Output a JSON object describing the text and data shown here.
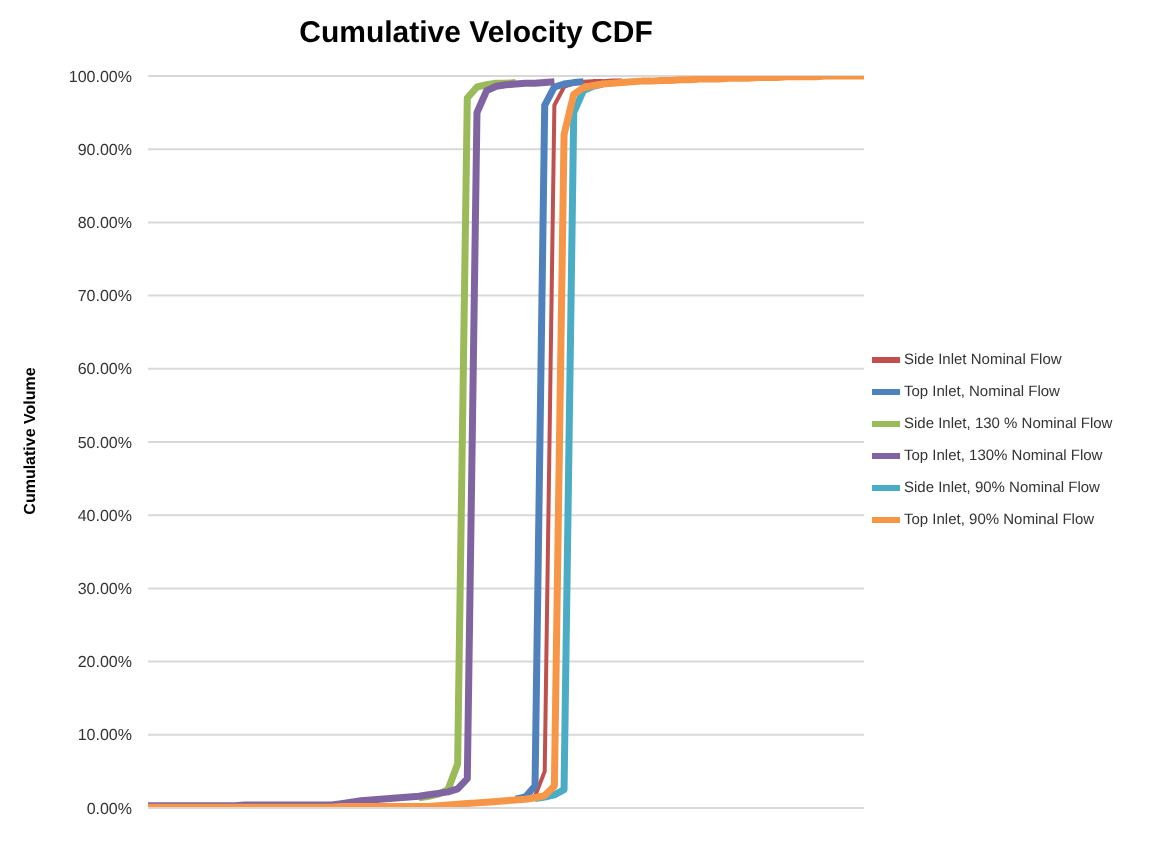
{
  "chart_data": {
    "type": "line",
    "title": "Cumulative Velocity CDF",
    "ylabel": "Cumulative Volume",
    "categories": [
      null,
      null,
      null,
      null,
      null,
      null,
      null,
      null,
      null,
      null,
      null,
      null,
      null,
      null,
      null,
      null,
      null,
      null,
      null,
      null,
      null,
      null,
      null,
      null,
      null,
      null,
      null,
      null,
      null,
      null,
      null,
      null,
      null,
      null,
      null,
      null,
      null,
      null,
      null,
      null,
      null,
      null,
      null,
      null,
      null,
      null,
      null,
      null,
      null,
      null,
      null,
      null,
      null,
      null,
      null,
      null,
      null,
      null,
      null,
      null,
      null,
      null,
      null,
      null,
      null,
      null,
      null,
      null,
      null,
      null,
      null,
      null,
      null,
      null,
      null
    ],
    "ylim": [
      0,
      100
    ],
    "yticks": [
      {
        "value": 0,
        "label": "0.00%"
      },
      {
        "value": 10,
        "label": "10.00%"
      },
      {
        "value": 20,
        "label": "20.00%"
      },
      {
        "value": 30,
        "label": "30.00%"
      },
      {
        "value": 40,
        "label": "40.00%"
      },
      {
        "value": 50,
        "label": "50.00%"
      },
      {
        "value": 60,
        "label": "60.00%"
      },
      {
        "value": 70,
        "label": "70.00%"
      },
      {
        "value": 80,
        "label": "80.00%"
      },
      {
        "value": 90,
        "label": "90.00%"
      },
      {
        "value": 100,
        "label": "100.00%"
      }
    ],
    "grid": "y",
    "legend": "right",
    "tick_labels": "y",
    "marker": "none",
    "line_style": "solid",
    "series": [
      {
        "name": "Side Inlet Nominal Flow",
        "color": "#c0504d",
        "values": [
          null,
          null,
          null,
          null,
          null,
          null,
          null,
          null,
          null,
          null,
          null,
          null,
          null,
          null,
          null,
          null,
          null,
          null,
          null,
          null,
          null,
          null,
          null,
          null,
          null,
          null,
          null,
          null,
          null,
          null,
          null,
          null,
          null,
          null,
          null,
          null,
          null,
          null,
          null,
          1.3,
          1.6,
          5,
          96,
          98.5,
          99.0,
          99.2,
          99.3,
          99.3,
          99.4,
          99.4,
          null,
          null,
          null,
          null,
          null,
          null,
          null,
          null,
          null,
          null,
          null,
          null,
          null,
          null,
          null,
          null,
          null,
          null,
          null,
          null,
          null,
          null,
          null,
          null,
          null
        ]
      },
      {
        "name": "Top Inlet, Nominal Flow",
        "color": "#4f81bd",
        "values": [
          null,
          null,
          null,
          null,
          null,
          null,
          null,
          null,
          null,
          null,
          null,
          null,
          null,
          null,
          null,
          null,
          null,
          null,
          null,
          null,
          null,
          null,
          null,
          null,
          null,
          null,
          null,
          null,
          null,
          null,
          null,
          null,
          null,
          null,
          null,
          null,
          null,
          null,
          1.2,
          1.5,
          3,
          96,
          98.5,
          98.9,
          99.1,
          99.2,
          null,
          null,
          null,
          null,
          null,
          null,
          null,
          null,
          null,
          null,
          null,
          null,
          null,
          null,
          null,
          null,
          null,
          null,
          null,
          null,
          null,
          null,
          null,
          null,
          null,
          null,
          null,
          null,
          null
        ]
      },
      {
        "name": "Side Inlet, 130 % Nominal Flow",
        "color": "#9bbb59",
        "values": [
          null,
          null,
          null,
          null,
          null,
          null,
          null,
          null,
          null,
          null,
          null,
          null,
          null,
          null,
          null,
          null,
          null,
          null,
          null,
          null,
          null,
          null,
          null,
          null,
          null,
          null,
          null,
          null,
          1.4,
          1.6,
          1.9,
          2.5,
          6,
          97,
          98.5,
          98.8,
          99.0,
          99.0,
          99.1,
          null,
          null,
          null,
          null,
          null,
          null,
          null,
          null,
          null,
          null,
          null,
          null,
          null,
          null,
          null,
          null,
          null,
          null,
          null,
          null,
          null,
          null,
          null,
          null,
          null,
          null,
          null,
          null,
          null,
          null,
          null,
          null,
          null,
          null,
          null,
          null
        ]
      },
      {
        "name": "Top Inlet, 130% Nominal Flow",
        "color": "#8064a2",
        "values": [
          0.3,
          0.3,
          0.3,
          0.3,
          0.3,
          0.3,
          0.3,
          0.3,
          0.3,
          0.3,
          0.4,
          0.4,
          0.4,
          0.4,
          0.4,
          0.4,
          0.4,
          0.4,
          0.4,
          0.4,
          0.6,
          0.8,
          1.0,
          1.1,
          1.2,
          1.3,
          1.4,
          1.5,
          1.6,
          1.8,
          2.0,
          2.2,
          2.6,
          4,
          95,
          98,
          98.6,
          98.8,
          98.9,
          99.0,
          99.0,
          99.1,
          99.2,
          null,
          null,
          null,
          null,
          null,
          null,
          null,
          null,
          null,
          null,
          null,
          null,
          null,
          null,
          null,
          null,
          null,
          null,
          null,
          null,
          null,
          null,
          null,
          null,
          null,
          null,
          null,
          null,
          null,
          null,
          null,
          null
        ]
      },
      {
        "name": "Side Inlet, 90% Nominal Flow",
        "color": "#4bacc6",
        "values": [
          null,
          null,
          null,
          null,
          null,
          null,
          null,
          null,
          null,
          null,
          null,
          null,
          null,
          null,
          null,
          null,
          null,
          null,
          null,
          null,
          null,
          null,
          null,
          null,
          null,
          null,
          null,
          null,
          null,
          null,
          null,
          null,
          null,
          null,
          null,
          null,
          null,
          null,
          null,
          null,
          1.3,
          1.5,
          1.8,
          2.5,
          95,
          98.0,
          98.6,
          98.9,
          null,
          null,
          null,
          null,
          null,
          null,
          null,
          null,
          null,
          null,
          null,
          null,
          null,
          null,
          null,
          null,
          null,
          null,
          null,
          null,
          null,
          null,
          null,
          null,
          null,
          null,
          null
        ]
      },
      {
        "name": "Top Inlet, 90% Nominal Flow",
        "color": "#f79646",
        "values": [
          0.1,
          0.1,
          0.1,
          0.1,
          0.1,
          0.1,
          0.1,
          0.1,
          0.1,
          0.1,
          0.1,
          0.1,
          0.1,
          0.1,
          0.1,
          0.1,
          0.1,
          0.1,
          0.1,
          0.1,
          0.2,
          0.2,
          0.2,
          0.2,
          0.2,
          0.2,
          0.2,
          0.2,
          0.2,
          0.2,
          0.3,
          0.4,
          0.5,
          0.6,
          0.7,
          0.8,
          0.9,
          1.0,
          1.1,
          1.2,
          1.4,
          1.7,
          3,
          92,
          97.5,
          98.4,
          98.7,
          98.9,
          99.0,
          99.1,
          99.2,
          99.3,
          99.3,
          99.4,
          99.4,
          99.5,
          99.5,
          99.6,
          99.6,
          99.6,
          99.7,
          99.7,
          99.7,
          99.8,
          99.8,
          99.8,
          99.9,
          99.9,
          99.9,
          99.9,
          100,
          100,
          100,
          100,
          100
        ]
      }
    ]
  }
}
